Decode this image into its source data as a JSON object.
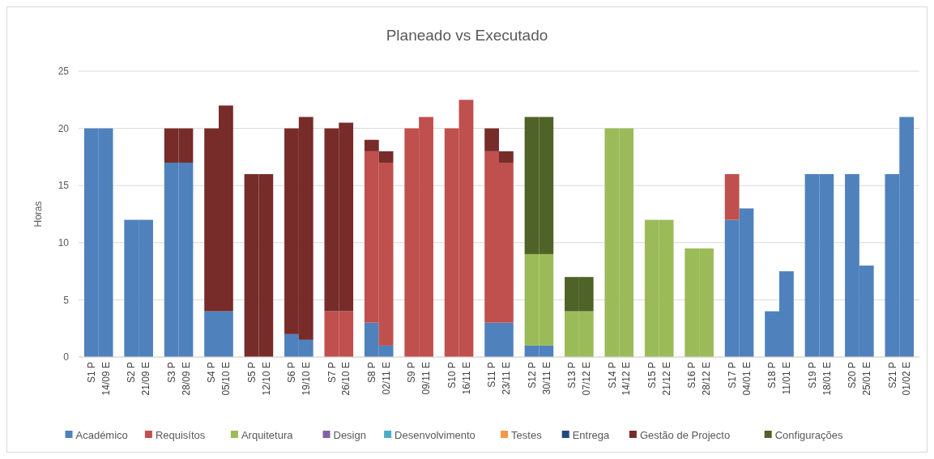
{
  "chart_data": {
    "type": "bar",
    "stacked": true,
    "title": "Planeado vs Executado",
    "ylabel": "Horas",
    "categories": [
      "S1 P",
      "14/09 E",
      "S2 P",
      "21/09 E",
      "S3 P",
      "28/09 E",
      "S4 P",
      "05/10 E",
      "S5 P",
      "12/10 E",
      "S6 P",
      "19/10 E",
      "S7 P",
      "26/10 E",
      "S8 P",
      "02/11 E",
      "S9 P",
      "09/11 E",
      "S10 P",
      "16/11 E",
      "S11 P",
      "23/11 E",
      "S12 P",
      "30/11 E",
      "S13 P",
      "07/12 E",
      "S14 P",
      "14/12 E",
      "S15 P",
      "21/12 E",
      "S16 P",
      "28/12 E",
      "S17 P",
      "04/01 E",
      "S18 P",
      "11/01 E",
      "S19 P",
      "18/01 E",
      "S20 P",
      "25/01 E",
      "S21 P",
      "01/02 E"
    ],
    "series": [
      {
        "name": "Académico",
        "color": "#4f81bd",
        "values": [
          20,
          20,
          12,
          12,
          17,
          17,
          4,
          4,
          null,
          null,
          2,
          1.5,
          null,
          null,
          3,
          1,
          null,
          null,
          null,
          null,
          3,
          3,
          1,
          1,
          null,
          null,
          null,
          null,
          null,
          null,
          null,
          null,
          12,
          13,
          4,
          7.5,
          16,
          16,
          16,
          8,
          16,
          21
        ]
      },
      {
        "name": "Requisítos",
        "color": "#c0504d",
        "values": [
          null,
          null,
          null,
          null,
          null,
          null,
          null,
          null,
          null,
          null,
          null,
          null,
          4,
          4,
          15,
          16,
          20,
          21,
          20,
          22.5,
          15,
          14,
          null,
          null,
          null,
          null,
          null,
          null,
          null,
          null,
          null,
          null,
          4,
          null,
          null,
          null,
          null,
          null,
          null,
          null,
          null,
          null
        ]
      },
      {
        "name": "Arquitetura",
        "color": "#9bbb59",
        "values": [
          null,
          null,
          null,
          null,
          null,
          null,
          null,
          null,
          null,
          null,
          null,
          null,
          null,
          null,
          null,
          null,
          null,
          null,
          null,
          null,
          null,
          null,
          8,
          8,
          4,
          4,
          20,
          20,
          12,
          12,
          9.5,
          9.5,
          null,
          null,
          null,
          null,
          null,
          null,
          null,
          null,
          null,
          null
        ]
      },
      {
        "name": "Design",
        "color": "#8064a2",
        "values": [
          null,
          null,
          null,
          null,
          null,
          null,
          null,
          null,
          null,
          null,
          null,
          null,
          null,
          null,
          null,
          null,
          null,
          null,
          null,
          null,
          null,
          null,
          null,
          null,
          null,
          null,
          null,
          null,
          null,
          null,
          null,
          null,
          null,
          null,
          null,
          null,
          null,
          null,
          null,
          null,
          null,
          null
        ]
      },
      {
        "name": "Desenvolvimento",
        "color": "#4bacc6",
        "values": [
          null,
          null,
          null,
          null,
          null,
          null,
          null,
          null,
          null,
          null,
          null,
          null,
          null,
          null,
          null,
          null,
          null,
          null,
          null,
          null,
          null,
          null,
          null,
          null,
          null,
          null,
          null,
          null,
          null,
          null,
          null,
          null,
          null,
          null,
          null,
          null,
          null,
          null,
          null,
          null,
          null,
          null
        ]
      },
      {
        "name": "Testes",
        "color": "#f79646",
        "values": [
          null,
          null,
          null,
          null,
          null,
          null,
          null,
          null,
          null,
          null,
          null,
          null,
          null,
          null,
          null,
          null,
          null,
          null,
          null,
          null,
          null,
          null,
          null,
          null,
          null,
          null,
          null,
          null,
          null,
          null,
          null,
          null,
          null,
          null,
          null,
          null,
          null,
          null,
          null,
          null,
          null,
          null
        ]
      },
      {
        "name": "Entrega",
        "color": "#1f497d",
        "values": [
          null,
          null,
          null,
          null,
          null,
          null,
          null,
          null,
          null,
          null,
          null,
          null,
          null,
          null,
          null,
          null,
          null,
          null,
          null,
          null,
          null,
          null,
          null,
          null,
          null,
          null,
          null,
          null,
          null,
          null,
          null,
          null,
          null,
          null,
          null,
          null,
          null,
          null,
          null,
          null,
          null,
          null
        ]
      },
      {
        "name": "Gestão de Projecto",
        "color": "#772c2a",
        "values": [
          null,
          null,
          null,
          null,
          3,
          3,
          16,
          18,
          16,
          16,
          18,
          19.5,
          16,
          16.5,
          1,
          1,
          null,
          null,
          null,
          null,
          2,
          1,
          null,
          null,
          null,
          null,
          null,
          null,
          null,
          null,
          null,
          null,
          null,
          null,
          null,
          null,
          null,
          null,
          null,
          null,
          null,
          null
        ]
      },
      {
        "name": "Configurações",
        "color": "#4f6228",
        "values": [
          null,
          null,
          null,
          null,
          null,
          null,
          null,
          null,
          null,
          null,
          null,
          null,
          null,
          null,
          null,
          null,
          null,
          null,
          null,
          null,
          null,
          null,
          12,
          12,
          3,
          3,
          null,
          null,
          null,
          null,
          null,
          null,
          null,
          null,
          null,
          null,
          null,
          null,
          null,
          null,
          null,
          null
        ]
      }
    ],
    "ylim": [
      0,
      25
    ],
    "yticks": [
      0,
      5,
      10,
      15,
      20,
      25
    ],
    "grid": "y",
    "legend": "bottom"
  }
}
